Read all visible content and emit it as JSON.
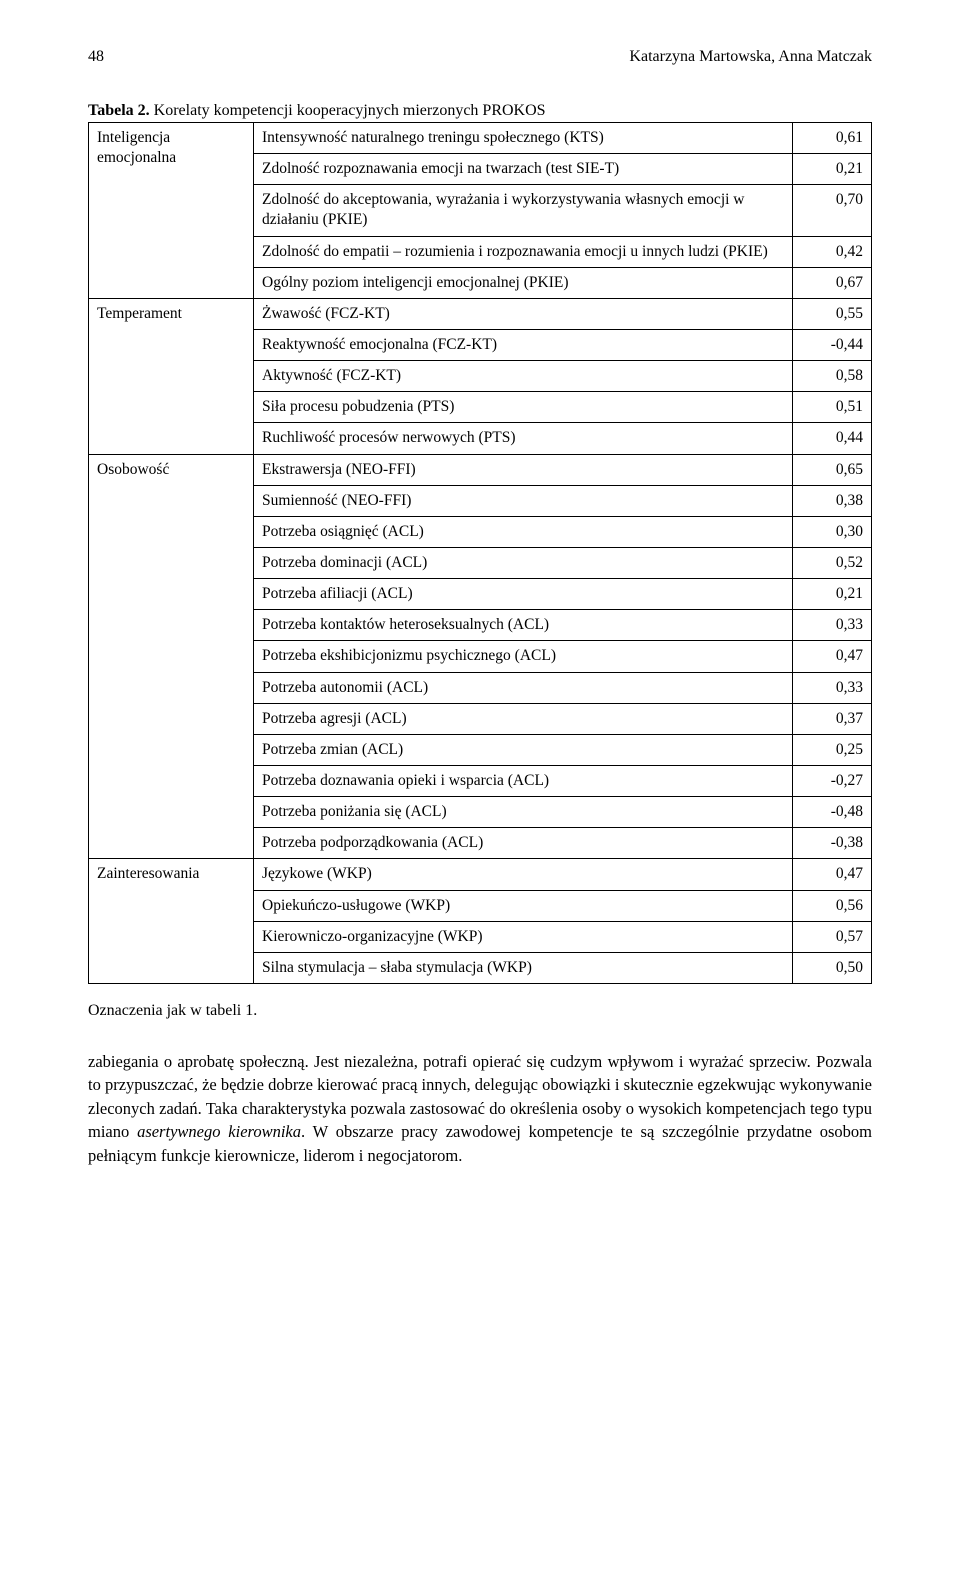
{
  "header": {
    "page_number": "48",
    "authors": "Katarzyna Martowska, Anna Matczak"
  },
  "table": {
    "caption_label": "Tabela 2.",
    "caption_text": " Korelaty kompetencji kooperacyjnych mierzonych PROKOS",
    "groups": [
      {
        "category": "Inteligencja emocjonalna",
        "rows": [
          {
            "label": "Intensywność naturalnego treningu społecznego (KTS)",
            "value": "0,61"
          },
          {
            "label": "Zdolność rozpoznawania emocji na twarzach (test SIE-T)",
            "value": "0,21"
          },
          {
            "label": "Zdolność do akceptowania, wyrażania i wykorzystywania własnych emocji w działaniu (PKIE)",
            "value": "0,70"
          },
          {
            "label": "Zdolność do empatii – rozumienia i rozpoznawania emocji u innych ludzi (PKIE)",
            "value": "0,42"
          },
          {
            "label": "Ogólny poziom inteligencji emocjonalnej (PKIE)",
            "value": "0,67"
          }
        ]
      },
      {
        "category": "Temperament",
        "rows": [
          {
            "label": "Żwawość (FCZ-KT)",
            "value": "0,55"
          },
          {
            "label": "Reaktywność emocjonalna (FCZ-KT)",
            "value": "-0,44"
          },
          {
            "label": "Aktywność (FCZ-KT)",
            "value": "0,58"
          },
          {
            "label": "Siła procesu pobudzenia (PTS)",
            "value": "0,51"
          },
          {
            "label": "Ruchliwość procesów nerwowych (PTS)",
            "value": "0,44"
          }
        ]
      },
      {
        "category": "Osobowość",
        "rows": [
          {
            "label": "Ekstrawersja (NEO-FFI)",
            "value": "0,65"
          },
          {
            "label": "Sumienność (NEO-FFI)",
            "value": "0,38"
          },
          {
            "label": "Potrzeba osiągnięć (ACL)",
            "value": "0,30"
          },
          {
            "label": "Potrzeba dominacji (ACL)",
            "value": "0,52"
          },
          {
            "label": "Potrzeba afiliacji (ACL)",
            "value": "0,21"
          },
          {
            "label": "Potrzeba kontaktów heteroseksualnych (ACL)",
            "value": "0,33"
          },
          {
            "label": "Potrzeba ekshibicjonizmu psychicznego (ACL)",
            "value": "0,47"
          },
          {
            "label": "Potrzeba autonomii (ACL)",
            "value": "0,33"
          },
          {
            "label": "Potrzeba agresji (ACL)",
            "value": "0,37"
          },
          {
            "label": "Potrzeba zmian (ACL)",
            "value": "0,25"
          },
          {
            "label": "Potrzeba doznawania opieki i wsparcia (ACL)",
            "value": "-0,27"
          },
          {
            "label": "Potrzeba poniżania się (ACL)",
            "value": "-0,48"
          },
          {
            "label": "Potrzeba podporządkowania (ACL)",
            "value": "-0,38"
          }
        ]
      },
      {
        "category": "Zainteresowania",
        "rows": [
          {
            "label": "Językowe (WKP)",
            "value": "0,47"
          },
          {
            "label": "Opiekuńczo-usługowe (WKP)",
            "value": "0,56"
          },
          {
            "label": "Kierowniczo-organizacyjne (WKP)",
            "value": "0,57"
          },
          {
            "label": "Silna stymulacja – słaba stymulacja (WKP)",
            "value": "0,50"
          }
        ]
      }
    ],
    "footnote": "Oznaczenia jak w tabeli 1."
  },
  "paragraph": {
    "pre": "zabiegania o aprobatę społeczną. Jest niezależna, potrafi opierać się cudzym wpływom i wyrażać sprzeciw. Pozwala to przypuszczać, że będzie dobrze kierować pracą innych, delegując obowiązki i skutecznie egzekwując wykonywanie zleconych zadań. Taka charakterystyka pozwala zastosować do określenia osoby o wysokich kompetencjach tego typu miano ",
    "italic": "asertywnego kierownika",
    "post": ". W obszarze pracy zawodowej kompetencje te są szczególnie przydatne osobom pełniącym funkcje kierownicze, liderom i negocjatorom."
  }
}
